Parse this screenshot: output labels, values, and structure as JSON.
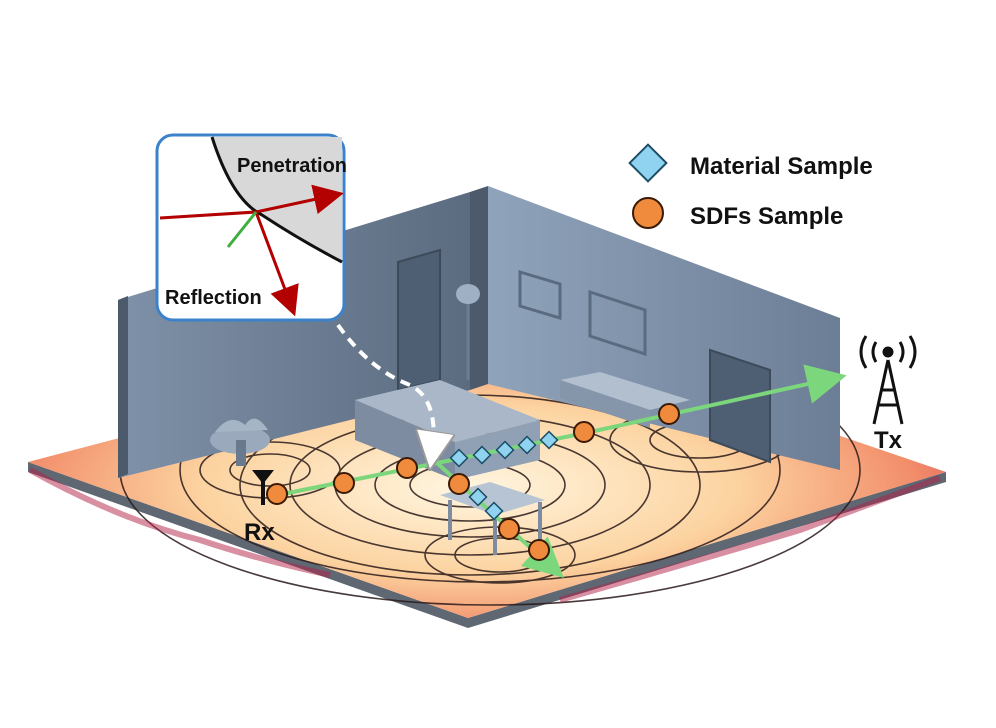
{
  "legend": {
    "material_sample": "Material Sample",
    "sdf_sample": "SDFs Sample"
  },
  "inset": {
    "penetration": "Penetration",
    "reflection": "Reflection"
  },
  "receiver_label": "Rx",
  "transmitter_label": "Tx",
  "colors": {
    "ray": "#7cd67c",
    "sdf_marker": "#f08a3c",
    "material_marker": "#8fd3f0",
    "inset_border": "#3b82c8",
    "ray_red": "#b30000"
  }
}
